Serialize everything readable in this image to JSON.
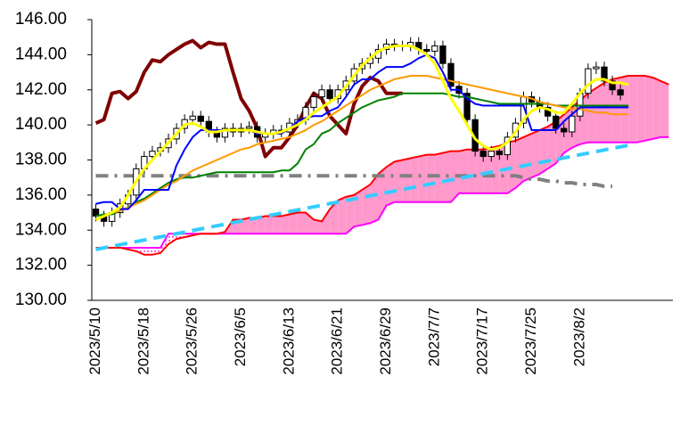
{
  "chart_data": {
    "type": "candlestick",
    "ylim": [
      130,
      146
    ],
    "yticks": [
      {
        "value": 130,
        "label": "130.00"
      },
      {
        "value": 132,
        "label": "132.00"
      },
      {
        "value": 134,
        "label": "134.00"
      },
      {
        "value": 136,
        "label": "136.00"
      },
      {
        "value": 138,
        "label": "138.00"
      },
      {
        "value": 140,
        "label": "140.00"
      },
      {
        "value": 142,
        "label": "142.00"
      },
      {
        "value": 144,
        "label": "144.00"
      },
      {
        "value": 146,
        "label": "146.00"
      }
    ],
    "categories": [
      "2023/5/10",
      null,
      null,
      null,
      null,
      null,
      "2023/5/18",
      null,
      null,
      null,
      null,
      null,
      "2023/5/26",
      null,
      null,
      null,
      null,
      null,
      "2023/6/5",
      null,
      null,
      null,
      null,
      null,
      "2023/6/13",
      null,
      null,
      null,
      null,
      null,
      "2023/6/21",
      null,
      null,
      null,
      null,
      null,
      "2023/6/29",
      null,
      null,
      null,
      null,
      null,
      "2023/7/7",
      null,
      null,
      null,
      null,
      null,
      "2023/7/17",
      null,
      null,
      null,
      null,
      null,
      "2023/7/25",
      null,
      null,
      null,
      null,
      null,
      "2023/8/2",
      null,
      null,
      null,
      null,
      null,
      null,
      null,
      null,
      null,
      null,
      null
    ],
    "candles": {
      "up_color": "#ffffff",
      "down_color": "#000000",
      "open": [
        135.2,
        134.8,
        134.5,
        135,
        135.5,
        136,
        137.5,
        138.2,
        138.5,
        138.7,
        139.2,
        139.8,
        140.3,
        140.5,
        140.2,
        139.6,
        139.3,
        139.8,
        139.6,
        139.8,
        139.9,
        139.3,
        139.5,
        139.7,
        139.6,
        140.1,
        140.3,
        141,
        141.6,
        142,
        141.5,
        142,
        142.5,
        143.2,
        143.5,
        143.8,
        144.3,
        144.6,
        144.5,
        144.5,
        144.7,
        144.3,
        144.2,
        144.5,
        143.5,
        142.2,
        141.8,
        140.3,
        138.5,
        138.2,
        138.5,
        138.3,
        139.3,
        140.1,
        141.6,
        141.3,
        141,
        140.5,
        139.8,
        139.6,
        140.5,
        141.8,
        143.2,
        143.3,
        142.5,
        142,
        null,
        null,
        null,
        null,
        null,
        null
      ],
      "high": [
        135.5,
        135.1,
        135.3,
        135.8,
        136.3,
        137.8,
        138.5,
        138.8,
        139,
        139.5,
        140.1,
        140.6,
        140.8,
        140.8,
        140.5,
        139.9,
        140.1,
        140.1,
        140.1,
        140.2,
        140.2,
        139.8,
        140,
        140,
        140.4,
        140.6,
        141.3,
        141.9,
        142.3,
        142.3,
        142.3,
        142.8,
        143.5,
        143.8,
        144.1,
        144.6,
        144.9,
        144.9,
        144.8,
        145,
        145,
        144.6,
        144.8,
        144.8,
        143.8,
        142.5,
        142.1,
        140.6,
        138.8,
        138.8,
        138.8,
        139.6,
        140.4,
        141.9,
        141.9,
        141.6,
        141.3,
        140.8,
        140.1,
        140.8,
        142.1,
        143.5,
        143.6,
        143.6,
        142.8,
        142.3,
        null,
        null,
        null,
        null,
        null,
        null
      ],
      "low": [
        134.5,
        134.2,
        134.2,
        134.7,
        135.2,
        135.7,
        137.2,
        137.9,
        138.2,
        138.4,
        138.9,
        139.5,
        140,
        139.9,
        139.3,
        139,
        139,
        139.3,
        139.3,
        139.5,
        139,
        139,
        139.2,
        139.3,
        139.3,
        139.8,
        140,
        140.7,
        141.3,
        141.2,
        141.2,
        141.7,
        142.2,
        142.9,
        143.2,
        143.5,
        144,
        144.2,
        144.2,
        144.2,
        144,
        143.9,
        143.9,
        143.2,
        141.9,
        141.5,
        140,
        138.2,
        137.9,
        137.9,
        138,
        138,
        139,
        139.8,
        141,
        140.7,
        140.2,
        139.5,
        139.3,
        139.3,
        140.2,
        141.5,
        142.9,
        142.2,
        141.7,
        141.4,
        null,
        null,
        null,
        null,
        null,
        null
      ],
      "close": [
        134.8,
        134.5,
        135,
        135.5,
        136,
        137.5,
        138.2,
        138.5,
        138.7,
        139.2,
        139.8,
        140.3,
        140.5,
        140.2,
        139.6,
        139.3,
        139.8,
        139.6,
        139.8,
        139.9,
        139.3,
        139.5,
        139.7,
        139.6,
        140.1,
        140.3,
        141,
        141.6,
        142,
        141.5,
        142,
        142.5,
        143.2,
        143.5,
        143.8,
        144.3,
        144.6,
        144.5,
        144.5,
        144.7,
        144.3,
        144.2,
        144.5,
        143.5,
        142.2,
        141.8,
        140.3,
        138.5,
        138.2,
        138.5,
        138.3,
        139.3,
        140.1,
        141.6,
        141.3,
        141,
        140.5,
        139.8,
        139.6,
        140.5,
        141.8,
        143.2,
        143.3,
        142.5,
        142,
        141.7,
        null,
        null,
        null,
        null,
        null,
        null
      ]
    },
    "cloud": {
      "fill": "#ff99cc",
      "span_a_color": "#ff0000",
      "span_b_color": "#ff00ff",
      "span_a": [
        133,
        133,
        133,
        133,
        132.9,
        132.8,
        132.6,
        132.6,
        132.7,
        133.2,
        133.5,
        133.6,
        133.7,
        133.8,
        133.8,
        133.8,
        133.9,
        134.6,
        134.6,
        134.7,
        134.7,
        134.8,
        134.8,
        134.8,
        134.9,
        135,
        135,
        134.6,
        134.5,
        135.2,
        135.7,
        135.9,
        136,
        136.3,
        136.6,
        137.2,
        137.6,
        137.9,
        138,
        138.1,
        138.2,
        138.3,
        138.3,
        138.4,
        138.5,
        138.5,
        138.6,
        138.6,
        138.6,
        138.7,
        138.8,
        139,
        139.1,
        139.3,
        139.5,
        139.7,
        139.9,
        140.2,
        140.6,
        141,
        141.4,
        141.8,
        142.1,
        142.4,
        142.6,
        142.7,
        142.8,
        142.8,
        142.8,
        142.7,
        142.5,
        142.3
      ],
      "span_b": [
        133,
        133,
        133,
        133,
        133,
        133,
        133,
        133,
        133,
        133.8,
        133.8,
        133.8,
        133.8,
        133.8,
        133.8,
        133.8,
        133.8,
        133.8,
        133.8,
        133.8,
        133.8,
        133.8,
        133.8,
        133.8,
        133.8,
        133.8,
        133.8,
        133.8,
        133.8,
        133.8,
        133.8,
        133.8,
        134.2,
        134.3,
        134.4,
        134.6,
        135.4,
        135.6,
        135.6,
        135.6,
        135.6,
        135.6,
        135.6,
        135.6,
        135.6,
        136.1,
        136.1,
        136.1,
        136.1,
        136.1,
        136.1,
        136.1,
        136.4,
        136.8,
        137,
        137.2,
        137.5,
        137.8,
        138.4,
        138.7,
        138.9,
        139,
        139,
        139,
        139,
        139,
        139,
        139,
        139.1,
        139.2,
        139.3,
        139.3
      ]
    },
    "series": [
      {
        "color": "#808080",
        "line_width": 4,
        "dash": "14 7 3 7",
        "values": [
          137.1,
          137.1,
          137.1,
          137.1,
          137.1,
          137.1,
          137.1,
          137.1,
          137.1,
          137.1,
          137.1,
          137.1,
          137.1,
          137.1,
          137.1,
          137.1,
          137.1,
          137.1,
          137.1,
          137.1,
          137.1,
          137.1,
          137.1,
          137.1,
          137.1,
          137.1,
          137.1,
          137.1,
          137.1,
          137.1,
          137.1,
          137.1,
          137.1,
          137.1,
          137.1,
          137.1,
          137.1,
          137.1,
          137.1,
          137.1,
          137.1,
          137.1,
          137.1,
          137.1,
          137.1,
          137.1,
          137.1,
          137.1,
          137.1,
          137.1,
          137.1,
          137.1,
          137.1,
          137,
          136.9,
          136.9,
          136.8,
          136.8,
          136.7,
          136.7,
          136.6,
          136.6,
          136.6,
          136.5,
          136.5,
          null,
          null,
          null,
          null,
          null,
          null,
          null
        ]
      },
      {
        "color": "#33ccff",
        "line_width": 4,
        "dash": "14 8",
        "values": [
          132.9,
          132.99,
          133.08,
          133.17,
          133.26,
          133.35,
          133.44,
          133.53,
          133.62,
          133.71,
          133.8,
          133.89,
          133.98,
          134.07,
          134.16,
          134.25,
          134.34,
          134.43,
          134.52,
          134.61,
          134.7,
          134.79,
          134.88,
          134.97,
          135.06,
          135.15,
          135.24,
          135.33,
          135.42,
          135.51,
          135.6,
          135.69,
          135.78,
          135.87,
          135.96,
          136.05,
          136.14,
          136.23,
          136.32,
          136.41,
          136.5,
          136.59,
          136.68,
          136.77,
          136.86,
          136.95,
          137.04,
          137.13,
          137.22,
          137.31,
          137.4,
          137.49,
          137.58,
          137.67,
          137.76,
          137.85,
          137.94,
          138.03,
          138.12,
          138.21,
          138.3,
          138.39,
          138.48,
          138.57,
          138.66,
          138.75,
          138.84,
          null,
          null,
          null,
          null,
          null
        ]
      },
      {
        "color": "#800000",
        "line_width": 4,
        "values": [
          140.1,
          140.3,
          141.8,
          141.9,
          141.5,
          141.9,
          143,
          143.7,
          143.6,
          144,
          144.3,
          144.6,
          144.8,
          144.4,
          144.7,
          144.6,
          144.6,
          143,
          141.5,
          140.8,
          139.8,
          138.2,
          138.7,
          138.7,
          139.3,
          140,
          141,
          141.8,
          141.5,
          140.5,
          140,
          139.5,
          141.2,
          142.2,
          142.7,
          142.5,
          141.8,
          141.8,
          141.8,
          null,
          null,
          null,
          null,
          null,
          null,
          null,
          null,
          null,
          null,
          null,
          null,
          null,
          null,
          null,
          null,
          null,
          null,
          null,
          null,
          null,
          null,
          null,
          null,
          null,
          null,
          null,
          null,
          null,
          null,
          null,
          null,
          null
        ]
      },
      {
        "color": "#008000",
        "line_width": 2,
        "values": [
          134.8,
          134.9,
          134.9,
          135.1,
          135.3,
          135.6,
          135.8,
          136.1,
          136.4,
          136.7,
          136.9,
          137,
          137,
          137.1,
          137.2,
          137.3,
          137.3,
          137.3,
          137.3,
          137.3,
          137.3,
          137.3,
          137.3,
          137.4,
          137.4,
          137.8,
          138.6,
          138.9,
          139.5,
          139.7,
          140.1,
          140.4,
          140.7,
          141,
          141.2,
          141.4,
          141.5,
          141.6,
          141.8,
          141.8,
          141.8,
          141.8,
          141.8,
          141.8,
          141.7,
          141.6,
          141.6,
          141.5,
          141.4,
          141.3,
          141.2,
          141.2,
          141.2,
          141.2,
          141.2,
          141.2,
          141.2,
          141.1,
          141.1,
          141.1,
          141.1,
          141.1,
          141.1,
          141.1,
          141.1,
          141.1,
          141.1,
          null,
          null,
          null,
          null,
          null
        ]
      },
      {
        "color": "#ff9900",
        "line_width": 2,
        "values": [
          134.6,
          134.8,
          135,
          135.1,
          135.3,
          135.5,
          135.7,
          136,
          136.3,
          136.6,
          136.8,
          137.1,
          137.4,
          137.6,
          137.8,
          138,
          138.2,
          138.4,
          138.6,
          138.7,
          138.9,
          139,
          139.1,
          139.2,
          139.3,
          139.5,
          139.7,
          140,
          140.2,
          140.5,
          140.8,
          141.1,
          141.4,
          141.7,
          142,
          142.2,
          142.4,
          142.6,
          142.7,
          142.8,
          142.8,
          142.8,
          142.7,
          142.6,
          142.5,
          142.4,
          142.3,
          142.2,
          142.1,
          142,
          141.9,
          141.8,
          141.7,
          141.6,
          141.5,
          141.3,
          141.2,
          141.1,
          141,
          140.9,
          140.9,
          140.8,
          140.7,
          140.7,
          140.6,
          140.6,
          140.6,
          null,
          null,
          null,
          null,
          null
        ]
      },
      {
        "color": "#0000ff",
        "line_width": 2,
        "values": [
          135.5,
          135.6,
          135.6,
          135.2,
          135.2,
          135.7,
          136.3,
          136.3,
          136.3,
          136.3,
          137.7,
          138.6,
          139.3,
          139.7,
          139.7,
          139.7,
          139.7,
          139.7,
          139.7,
          139.7,
          139.5,
          139.5,
          139.5,
          139.5,
          139.8,
          140.2,
          140.4,
          140.5,
          140.5,
          140.8,
          141,
          141.6,
          142.3,
          142.6,
          142.6,
          143,
          143.3,
          143.3,
          143.3,
          143.5,
          143.8,
          144,
          143.8,
          143,
          142,
          142,
          141.5,
          141.2,
          141.1,
          141.1,
          141.1,
          141.1,
          141.1,
          141.1,
          139.7,
          139.7,
          139.7,
          139.7,
          140.2,
          140.6,
          141,
          141,
          141,
          141,
          141,
          141,
          141,
          null,
          null,
          null,
          null,
          null
        ]
      },
      {
        "color": "#ffff00",
        "line_width": 3,
        "values": [
          134.6,
          134.8,
          135,
          135.3,
          136,
          136.8,
          137.5,
          138,
          138.5,
          139,
          139.5,
          140,
          140.1,
          139.9,
          139.6,
          139.6,
          139.7,
          139.7,
          139.7,
          139.7,
          139.6,
          139.5,
          139.5,
          139.6,
          139.8,
          140,
          140.3,
          140.7,
          141,
          141.3,
          141.6,
          142.2,
          142.8,
          143.4,
          143.8,
          144.2,
          144.4,
          144.5,
          144.5,
          144.5,
          144.3,
          144,
          143.5,
          142.5,
          141.5,
          140.8,
          140,
          139.2,
          138.8,
          138.6,
          138.7,
          139,
          139.6,
          140.3,
          140.8,
          141,
          140.9,
          140.7,
          140.7,
          141.2,
          141.8,
          142.3,
          142.6,
          142.6,
          142.4,
          142.4,
          142.3,
          null,
          null,
          null,
          null,
          null
        ]
      }
    ]
  }
}
